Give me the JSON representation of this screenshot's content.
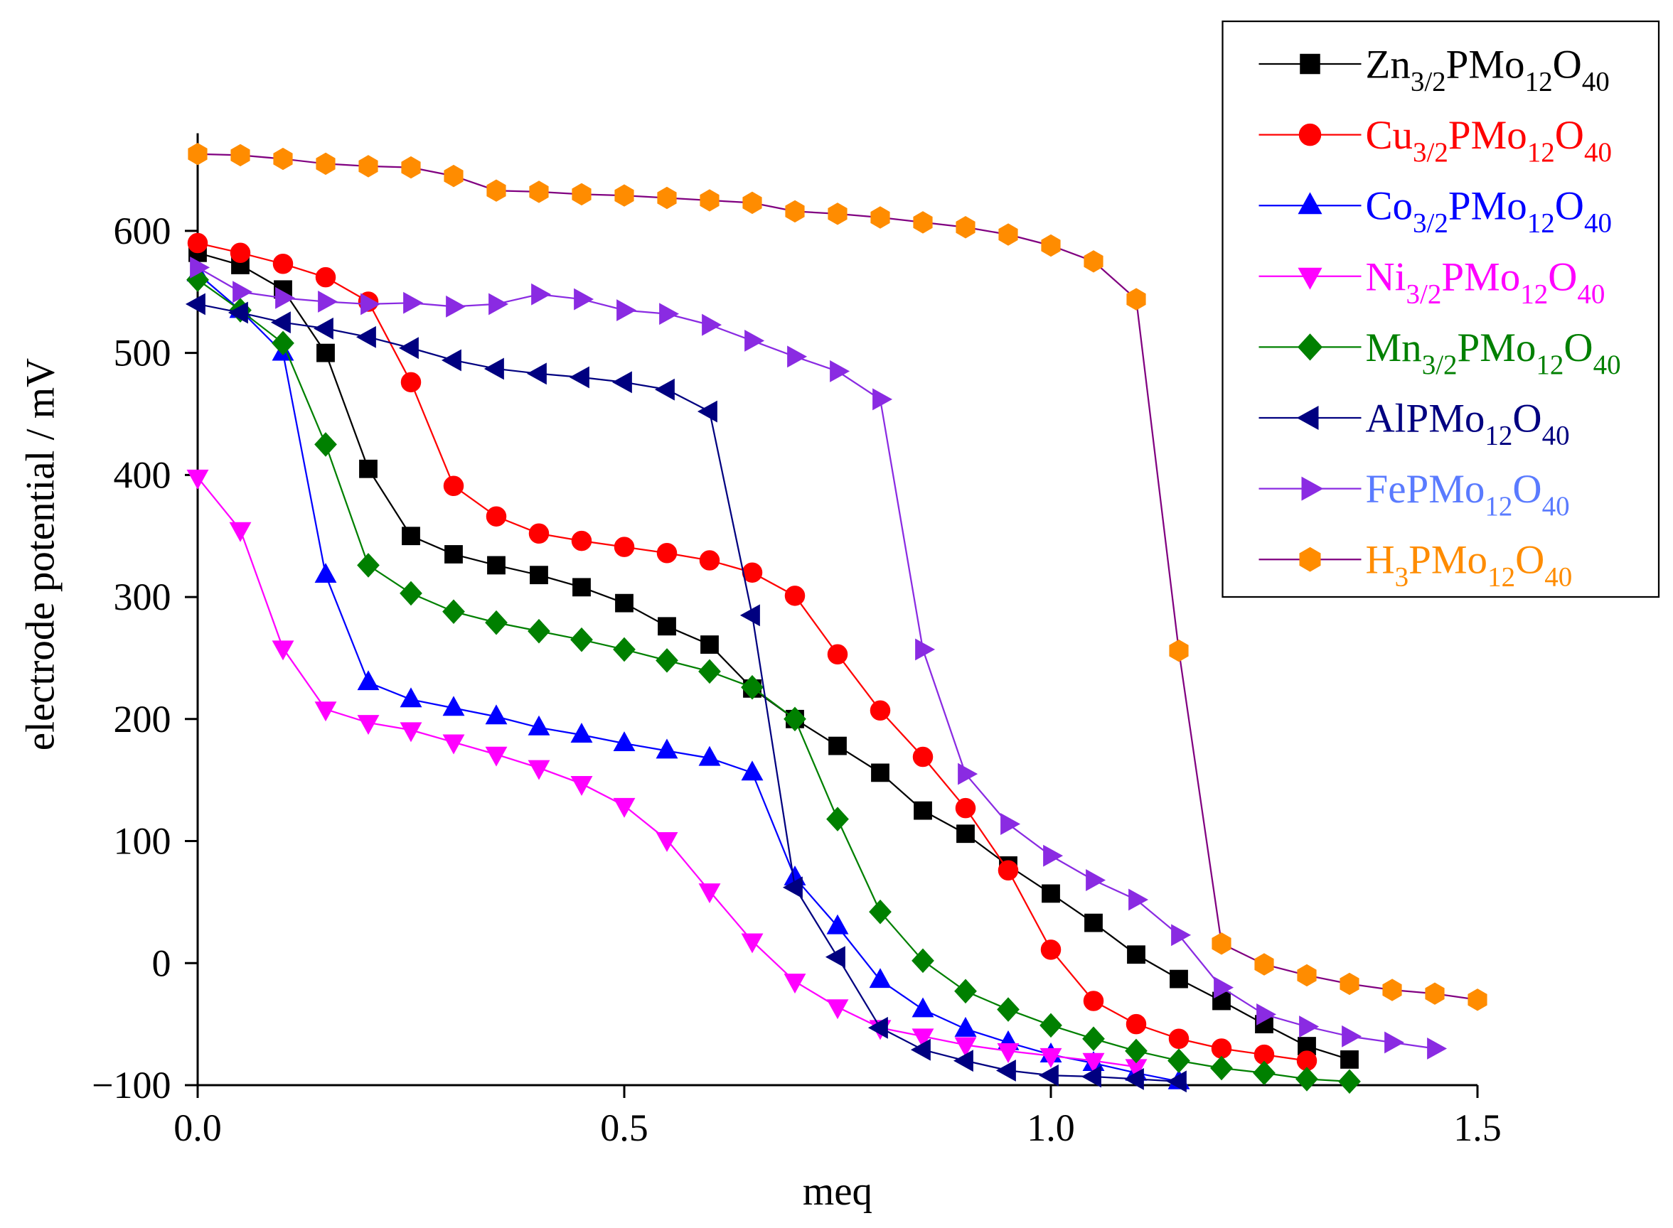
{
  "chart_data": {
    "type": "line",
    "x_label": "meq",
    "y_label": "electrode potential / mV",
    "x": [
      0,
      0.05,
      0.1,
      0.15,
      0.2,
      0.25,
      0.3,
      0.35,
      0.4,
      0.45,
      0.5,
      0.55,
      0.6,
      0.65,
      0.7,
      0.75,
      0.8,
      0.85,
      0.9,
      0.95,
      1.0,
      1.05,
      1.1,
      1.15,
      1.2,
      1.25,
      1.3,
      1.35,
      1.4,
      1.45,
      1.5
    ],
    "xlim": [
      0,
      1.5
    ],
    "xticks": [
      {
        "value": 0,
        "label": "0.0"
      },
      0.5,
      {
        "value": 1,
        "label": "1.0"
      },
      1.5
    ],
    "ylim": [
      -100,
      680
    ],
    "yticks": [
      {
        "value": -100,
        "label": "−100"
      },
      0,
      100,
      200,
      300,
      400,
      500,
      600
    ],
    "legend": "top-right",
    "series": [
      {
        "name": "Zn3/2PMo12O40",
        "color": "#000000",
        "marker_color": "#000000",
        "text_color": "#000000",
        "marker": "square",
        "values": [
          582,
          572,
          552,
          500,
          405,
          350,
          335,
          326,
          318,
          308,
          295,
          276,
          261,
          225,
          200,
          178,
          156,
          125,
          106,
          80,
          57,
          33,
          7,
          -13,
          -31,
          -50,
          -68,
          -79,
          null,
          null,
          null
        ]
      },
      {
        "name": "Cu3/2PMo12O40",
        "color": "#ff0000",
        "marker_color": "#ff0000",
        "text_color": "#ff0000",
        "marker": "circle",
        "values": [
          590,
          582,
          573,
          562,
          542,
          476,
          391,
          366,
          352,
          346,
          341,
          336,
          330,
          320,
          301,
          253,
          207,
          169,
          127,
          76,
          11,
          -31,
          -50,
          -62,
          -70,
          -75,
          -80,
          null,
          null,
          null,
          null
        ]
      },
      {
        "name": "Co3/2PMo12O40",
        "color": "#0000ff",
        "marker_color": "#0000ff",
        "text_color": "#0000ff",
        "marker": "triangle-up",
        "values": [
          565,
          535,
          500,
          318,
          230,
          216,
          209,
          202,
          193,
          187,
          180,
          174,
          168,
          156,
          70,
          30,
          -14,
          -38,
          -54,
          -65,
          -75,
          -82,
          -90,
          -97,
          null,
          null,
          null,
          null,
          null,
          null,
          null
        ]
      },
      {
        "name": "Ni3/2PMo12O40",
        "color": "#ff00ff",
        "marker_color": "#ff00ff",
        "text_color": "#ff00ff",
        "marker": "triangle-down",
        "values": [
          398,
          355,
          258,
          208,
          197,
          191,
          181,
          171,
          160,
          147,
          129,
          101,
          59,
          18,
          -15,
          -36,
          -53,
          -60,
          -67,
          -72,
          -76,
          -80,
          -85,
          null,
          null,
          null,
          null,
          null,
          null,
          null,
          null
        ]
      },
      {
        "name": "Mn3/2PMo12O40",
        "color": "#008000",
        "marker_color": "#008000",
        "text_color": "#008000",
        "marker": "diamond",
        "values": [
          560,
          535,
          508,
          425,
          326,
          303,
          288,
          279,
          272,
          265,
          257,
          248,
          239,
          226,
          200,
          118,
          42,
          2,
          -23,
          -38,
          -51,
          -62,
          -72,
          -80,
          -86,
          -90,
          -95,
          -97,
          null,
          null,
          null
        ]
      },
      {
        "name": "AlPMo12O40",
        "color": "#000080",
        "marker_color": "#000080",
        "text_color": "#000080",
        "marker": "triangle-left",
        "values": [
          540,
          533,
          525,
          520,
          513,
          504,
          494,
          487,
          483,
          480,
          476,
          470,
          452,
          285,
          62,
          5,
          -53,
          -71,
          -80,
          -88,
          -92,
          -93,
          -95,
          -97,
          null,
          null,
          null,
          null,
          null,
          null,
          null
        ]
      },
      {
        "name": "FePMo12O40",
        "color": "#8a2be2",
        "marker_color": "#8a2be2",
        "text_color": "#5a7bff",
        "marker": "triangle-right",
        "values": [
          570,
          550,
          545,
          542,
          540,
          541,
          538,
          540,
          548,
          544,
          535,
          532,
          523,
          510,
          497,
          485,
          462,
          257,
          155,
          114,
          88,
          68,
          52,
          23,
          -20,
          -42,
          -52,
          -60,
          -65,
          -70,
          null
        ]
      },
      {
        "name": "H3PMo12O40",
        "color": "#800080",
        "marker_color": "#ff8c00",
        "text_color": "#ff8c00",
        "marker": "hexagon",
        "values": [
          663,
          662,
          659,
          655,
          653,
          652,
          645,
          633,
          632,
          630,
          629,
          627,
          625,
          623,
          616,
          614,
          611,
          607,
          603,
          597,
          588,
          575,
          544,
          256,
          16,
          -1,
          -10,
          -17,
          -22,
          -25,
          -30
        ]
      }
    ]
  }
}
